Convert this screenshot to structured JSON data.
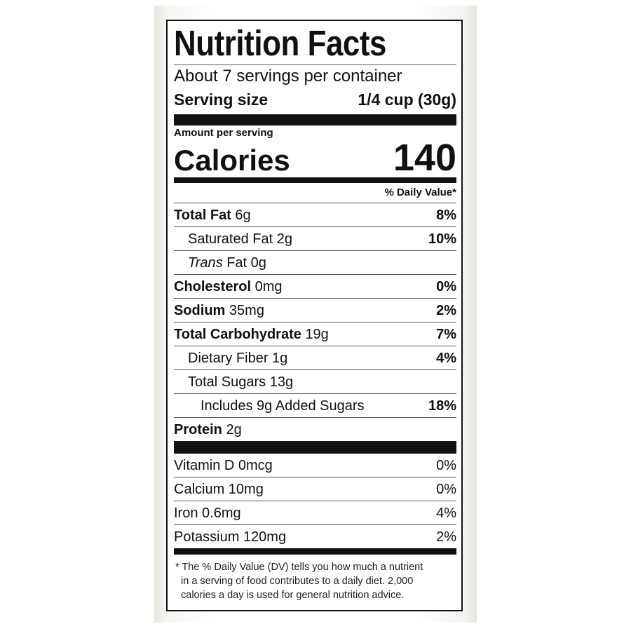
{
  "title": "Nutrition Facts",
  "servings_per_container": "About 7 servings per container",
  "serving_size": {
    "label": "Serving size",
    "value": "1/4 cup (30g)"
  },
  "amount_per_serving": "Amount per serving",
  "calories": {
    "label": "Calories",
    "value": "140"
  },
  "daily_value_header": "% Daily Value*",
  "nutrients": [
    {
      "name": "Total Fat",
      "amount": "6g",
      "dv": "8%",
      "bold": true,
      "indent": 0
    },
    {
      "name": "Saturated Fat",
      "amount": "2g",
      "dv": "10%",
      "bold": false,
      "indent": 1
    },
    {
      "name": "Trans",
      "name_suffix": "Fat",
      "amount": "0g",
      "dv": "",
      "bold": false,
      "indent": 1,
      "italic_prefix": true
    },
    {
      "name": "Cholesterol",
      "amount": "0mg",
      "dv": "0%",
      "bold": true,
      "indent": 0
    },
    {
      "name": "Sodium",
      "amount": "35mg",
      "dv": "2%",
      "bold": true,
      "indent": 0
    },
    {
      "name": "Total Carbohydrate",
      "amount": "19g",
      "dv": "7%",
      "bold": true,
      "indent": 0
    },
    {
      "name": "Dietary Fiber",
      "amount": "1g",
      "dv": "4%",
      "bold": false,
      "indent": 1
    },
    {
      "name": "Total Sugars",
      "amount": "13g",
      "dv": "",
      "bold": false,
      "indent": 1
    },
    {
      "name": "Includes 9g Added Sugars",
      "amount": "",
      "dv": "18%",
      "bold": false,
      "indent": 2
    },
    {
      "name": "Protein",
      "amount": "2g",
      "dv": "",
      "bold": true,
      "indent": 0
    }
  ],
  "micronutrients": [
    {
      "name": "Vitamin D 0mcg",
      "dv": "0%"
    },
    {
      "name": "Calcium 10mg",
      "dv": "0%"
    },
    {
      "name": "Iron 0.6mg",
      "dv": "4%"
    },
    {
      "name": "Potassium 120mg",
      "dv": "2%"
    }
  ],
  "footnote": [
    "* The % Daily Value (DV) tells you how much a nutrient",
    "in a serving of food contributes to a daily diet. 2,000",
    "calories a day is used for general nutrition advice."
  ]
}
